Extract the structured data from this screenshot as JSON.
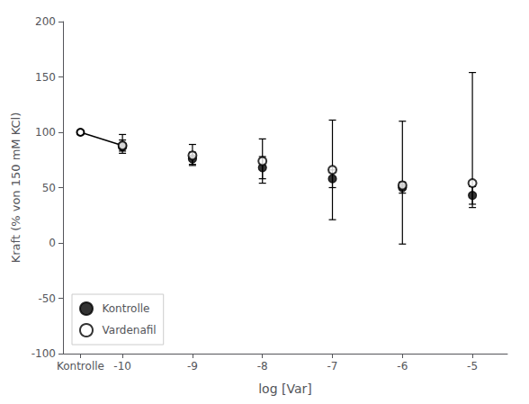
{
  "chart_data": {
    "type": "scatter",
    "xlabel": "log [Var]",
    "ylabel": "Kraft (% von 150 mM KCl)",
    "xlim": [
      -10.85,
      -4.5
    ],
    "ylim": [
      -100,
      200
    ],
    "xticks": [
      {
        "value": -10.6,
        "label": "Kontrolle"
      },
      -10,
      -9,
      -8,
      -7,
      -6,
      -5
    ],
    "yticks": [
      -100,
      -50,
      0,
      50,
      100,
      150,
      200
    ],
    "grid": false,
    "legend": "lower left",
    "series": [
      {
        "name": "Kontrolle",
        "type": "scatter",
        "marker": "circle",
        "color": "#000000",
        "x": [
          -10,
          -9,
          -8,
          -7,
          -6,
          -5
        ],
        "values": [
          87,
          76,
          68,
          58,
          50,
          43
        ],
        "error_low": [
          6,
          6,
          10,
          8,
          5,
          8
        ],
        "error_high": [
          6,
          6,
          10,
          8,
          5,
          8
        ]
      },
      {
        "name": "Vardenafil",
        "type": "scatter",
        "marker": "emptyCircle",
        "color": "#000000",
        "x": [
          -10,
          -9,
          -8,
          -7,
          -6,
          -5
        ],
        "values": [
          88,
          79,
          74,
          66,
          52,
          54
        ],
        "error_low": [
          5,
          8,
          20,
          45,
          53,
          22
        ],
        "error_high": [
          10,
          10,
          20,
          45,
          58,
          100
        ]
      },
      {
        "type": "line",
        "marker": "emptyCircle",
        "color": "#000000",
        "x": [
          -10.6,
          -10
        ],
        "values": [
          100,
          88
        ]
      }
    ]
  }
}
